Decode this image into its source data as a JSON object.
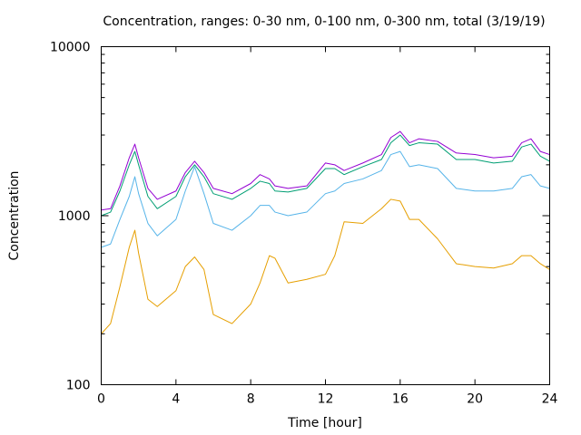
{
  "chart_data": {
    "type": "line",
    "title": "Concentration, ranges: 0-30 nm, 0-100 nm, 0-300 nm, total (3/19/19)",
    "xlabel": "Time [hour]",
    "ylabel": "Concentration",
    "x_ticks": [
      "0",
      "4",
      "8",
      "12",
      "16",
      "20",
      "24"
    ],
    "y_ticks": [
      "100",
      "1000",
      "10000"
    ],
    "xlim": [
      0,
      24
    ],
    "ylim": [
      100,
      10000
    ],
    "y_scale": "log",
    "grid": false,
    "legend": "none",
    "x": [
      0,
      0.5,
      1,
      1.5,
      1.8,
      2,
      2.5,
      3,
      4,
      4.5,
      5,
      5.5,
      6,
      7,
      8,
      8.5,
      9,
      9.3,
      10,
      11,
      12,
      12.5,
      13,
      14,
      15,
      15.5,
      16,
      16.5,
      17,
      18,
      19,
      20,
      21,
      22,
      22.5,
      23,
      23.5,
      24
    ],
    "series": [
      {
        "color": "#9400d3",
        "values": [
          1080,
          1100,
          1500,
          2200,
          2650,
          2200,
          1450,
          1250,
          1400,
          1800,
          2100,
          1800,
          1450,
          1350,
          1550,
          1750,
          1650,
          1500,
          1450,
          1500,
          2050,
          2000,
          1850,
          2050,
          2300,
          2900,
          3150,
          2700,
          2850,
          2750,
          2350,
          2300,
          2200,
          2250,
          2700,
          2850,
          2400,
          2300
        ]
      },
      {
        "color": "#009e73",
        "values": [
          1000,
          1050,
          1400,
          2000,
          2400,
          2000,
          1300,
          1100,
          1300,
          1700,
          2000,
          1700,
          1350,
          1250,
          1450,
          1600,
          1550,
          1400,
          1380,
          1450,
          1900,
          1900,
          1750,
          1950,
          2150,
          2700,
          3000,
          2600,
          2700,
          2650,
          2150,
          2150,
          2050,
          2100,
          2550,
          2650,
          2250,
          2100
        ]
      },
      {
        "color": "#56b4e9",
        "values": [
          650,
          680,
          950,
          1300,
          1700,
          1350,
          900,
          760,
          950,
          1400,
          1950,
          1350,
          900,
          820,
          1000,
          1150,
          1150,
          1050,
          1000,
          1050,
          1350,
          1400,
          1550,
          1650,
          1850,
          2300,
          2400,
          1950,
          2000,
          1900,
          1450,
          1400,
          1400,
          1450,
          1700,
          1750,
          1500,
          1450
        ]
      },
      {
        "color": "#e69f00",
        "values": [
          200,
          230,
          380,
          650,
          820,
          600,
          320,
          290,
          360,
          500,
          570,
          480,
          260,
          230,
          300,
          400,
          580,
          560,
          400,
          420,
          450,
          580,
          920,
          900,
          1100,
          1250,
          1220,
          950,
          950,
          730,
          520,
          500,
          490,
          520,
          580,
          580,
          520,
          480
        ]
      }
    ]
  }
}
